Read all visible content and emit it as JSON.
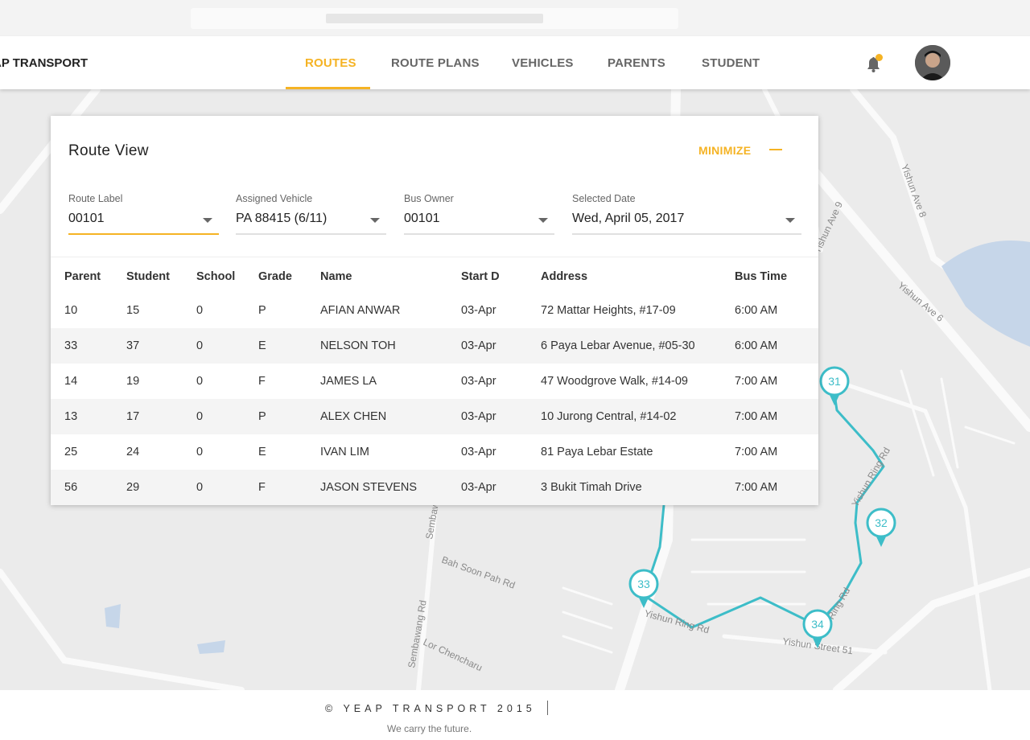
{
  "nav": {
    "brand": "YEAP TRANSPORT",
    "tabs": [
      "ROUTES",
      "ROUTE PLANS",
      "VEHICLES",
      "PARENTS",
      "STUDENT"
    ]
  },
  "panel": {
    "title": "Route View",
    "minimize": "MINIMIZE",
    "filters": [
      {
        "label": "Route Label",
        "value": "00101"
      },
      {
        "label": "Assigned Vehicle",
        "value": "PA 88415 (6/11)"
      },
      {
        "label": "Bus Owner",
        "value": "00101"
      },
      {
        "label": "Selected Date",
        "value": "Wed, April 05, 2017"
      }
    ],
    "table": {
      "columns": [
        "Parent",
        "Student",
        "School",
        "Grade",
        "Name",
        "Start D",
        "Address",
        "Bus Time"
      ],
      "rows": [
        [
          "10",
          "15",
          "0",
          "P",
          "AFIAN ANWAR",
          "03-Apr",
          "72 Mattar Heights, #17-09",
          "6:00 AM"
        ],
        [
          "33",
          "37",
          "0",
          "E",
          "NELSON TOH",
          "03-Apr",
          "6 Paya Lebar Avenue, #05-30",
          "6:00 AM"
        ],
        [
          "14",
          "19",
          "0",
          "F",
          "JAMES LA",
          "03-Apr",
          "47 Woodgrove Walk, #14-09",
          "7:00 AM"
        ],
        [
          "13",
          "17",
          "0",
          "P",
          "ALEX CHEN",
          "03-Apr",
          "10 Jurong Central, #14-02",
          "7:00 AM"
        ],
        [
          "25",
          "24",
          "0",
          "E",
          "IVAN LIM",
          "03-Apr",
          "81 Paya Lebar Estate",
          "7:00 AM"
        ],
        [
          "56",
          "29",
          "0",
          "F",
          "JASON STEVENS",
          "03-Apr",
          "3 Bukit Timah Drive",
          "7:00 AM"
        ]
      ]
    }
  },
  "map": {
    "markers": [
      "31",
      "32",
      "33",
      "34"
    ],
    "streets": [
      "Yishun Ring Rd",
      "Yishun Ring Rd",
      "Yishun Ave 6",
      "Yishun Ave 8",
      "Yishun Ave 9",
      "Bah Soon Pah Rd",
      "Lor Chencharu",
      "Yishun Street 51",
      "Sembawang Rd",
      "Sembawang Rd",
      "Ring Rd"
    ]
  },
  "footer": {
    "copyright": "© YEAP TRANSPORT 2015",
    "tagline": "We carry the future."
  }
}
